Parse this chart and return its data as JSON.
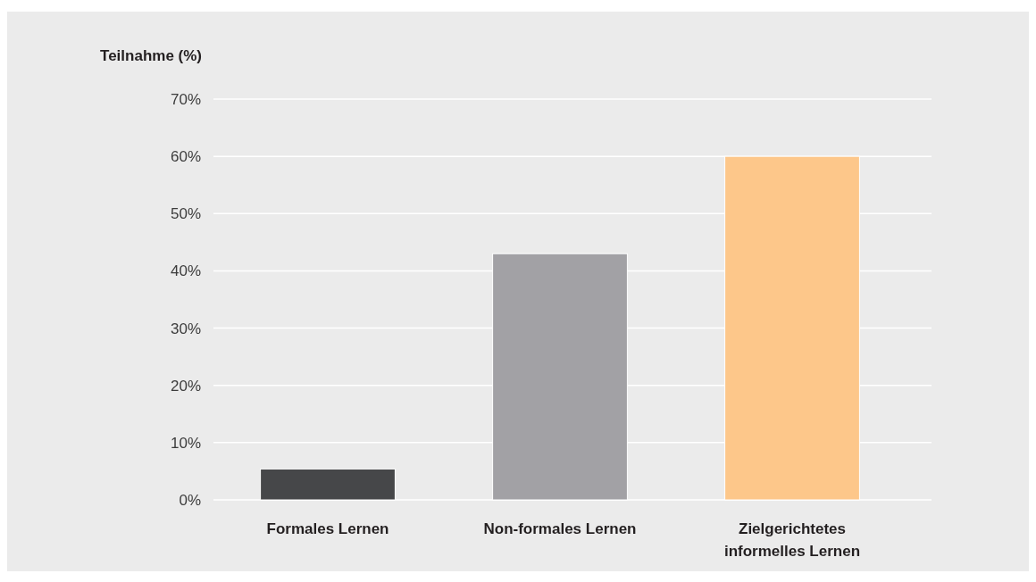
{
  "chart_data": {
    "type": "bar",
    "ylabel": "Teilnahme (%)",
    "categories": [
      "Formales Lernen",
      "Non-formales Lernen",
      "Zielgerichtetes informelles Lernen"
    ],
    "values": [
      5.4,
      43,
      60
    ],
    "colors": [
      "#464749",
      "#a2a1a5",
      "#fdc78a"
    ],
    "ylim": [
      0,
      70
    ],
    "yticks": [
      {
        "value": 0,
        "label": "0%"
      },
      {
        "value": 10,
        "label": "10%"
      },
      {
        "value": 20,
        "label": "20%"
      },
      {
        "value": 30,
        "label": "30%"
      },
      {
        "value": 40,
        "label": "40%"
      },
      {
        "value": 50,
        "label": "50%"
      },
      {
        "value": 60,
        "label": "60%"
      },
      {
        "value": 70,
        "label": "70%"
      }
    ],
    "grid": "y"
  }
}
